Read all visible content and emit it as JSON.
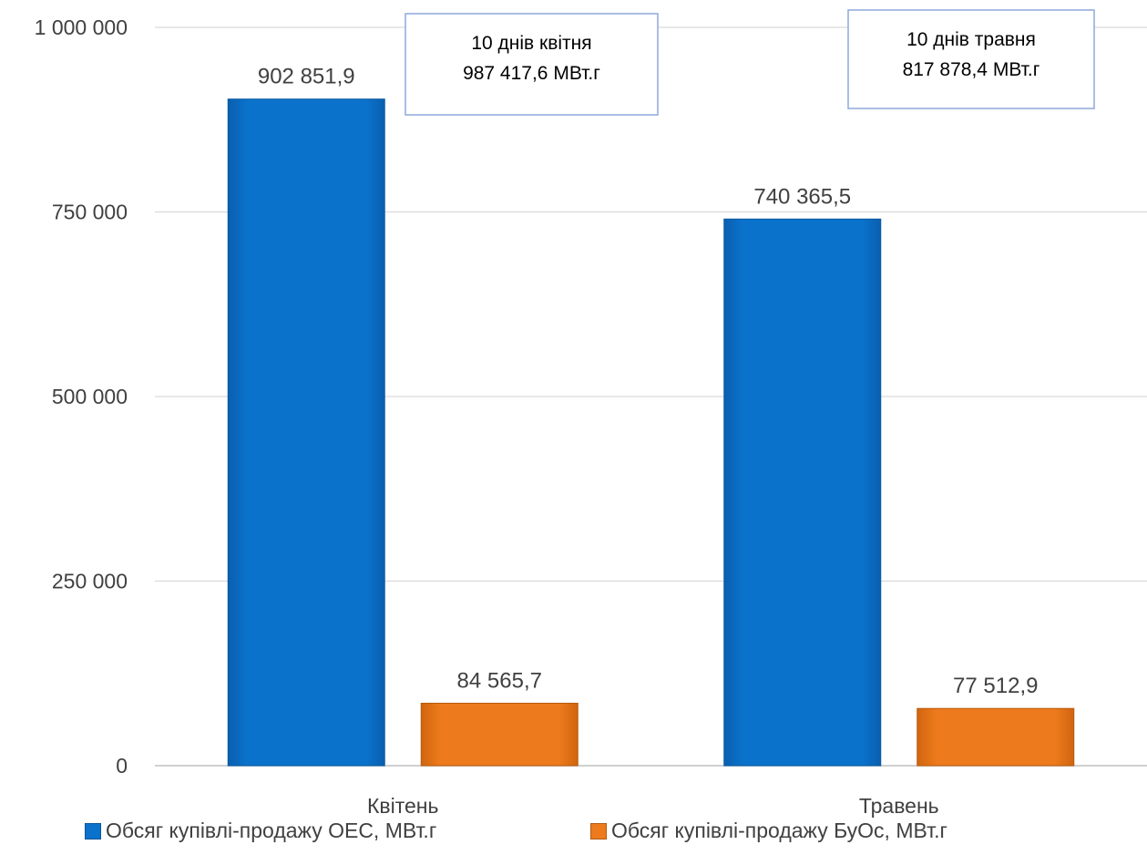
{
  "chart_data": {
    "type": "bar",
    "categories": [
      "Квітень",
      "Травень"
    ],
    "series": [
      {
        "name": "Обсяг купівлі-продажу ОЕС, МВт.г",
        "values": [
          902851.9,
          740365.5
        ],
        "labels": [
          "902 851,9",
          "740 365,5"
        ],
        "color": "#0B72CC"
      },
      {
        "name": "Обсяг купівлі-продажу БуОс, МВт.г",
        "values": [
          84565.7,
          77512.9
        ],
        "labels": [
          "84 565,7",
          "77 512,9"
        ],
        "color": "#ED7A1C"
      }
    ],
    "ylim": [
      0,
      1000000
    ],
    "yticks": [
      {
        "value": 0,
        "label": "0"
      },
      {
        "value": 250000,
        "label": "250 000"
      },
      {
        "value": 500000,
        "label": "500 000"
      },
      {
        "value": 750000,
        "label": "750 000"
      },
      {
        "value": 1000000,
        "label": "1 000 000"
      }
    ],
    "annotations": [
      {
        "line1": "10 днів квітня",
        "line2": "987 417,6 МВт.г"
      },
      {
        "line1": "10 днів травня",
        "line2": "817 878,4 МВт.г"
      }
    ],
    "grid": true,
    "legend_position": "bottom",
    "title": "",
    "xlabel": "",
    "ylabel": ""
  }
}
